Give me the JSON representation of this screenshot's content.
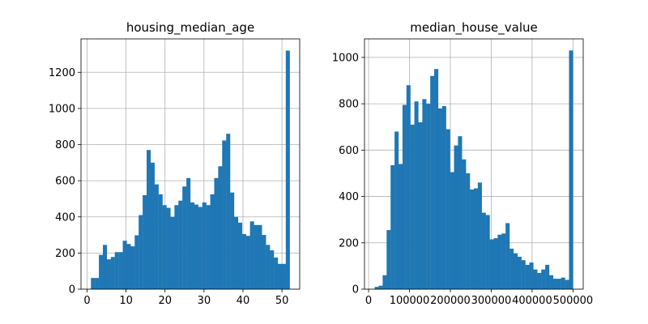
{
  "chart_data": [
    {
      "type": "bar",
      "title": "housing_median_age",
      "xlabel": "",
      "ylabel": "",
      "xlim": [
        -1.55,
        54.55
      ],
      "ylim": [
        0,
        1385
      ],
      "xticks": [
        0,
        10,
        20,
        30,
        40,
        50
      ],
      "yticks": [
        0,
        200,
        400,
        600,
        800,
        1000,
        1200
      ],
      "bin_range": [
        1,
        52
      ],
      "values": [
        62,
        62,
        190,
        245,
        165,
        178,
        205,
        205,
        268,
        250,
        237,
        298,
        410,
        520,
        770,
        700,
        580,
        525,
        465,
        450,
        400,
        465,
        490,
        568,
        615,
        480,
        468,
        455,
        480,
        465,
        525,
        615,
        680,
        823,
        860,
        535,
        400,
        368,
        305,
        295,
        375,
        355,
        355,
        300,
        245,
        215,
        175,
        140,
        140,
        1320
      ],
      "color": "#1f77b4",
      "grid": true
    },
    {
      "type": "bar",
      "title": "median_house_value",
      "xlabel": "",
      "ylabel": "",
      "xlim": [
        -10000,
        525000
      ],
      "ylim": [
        0,
        1080
      ],
      "xticks": [
        0,
        100000,
        200000,
        300000,
        400000,
        500000
      ],
      "yticks": [
        0,
        200,
        400,
        600,
        800,
        1000
      ],
      "bin_range": [
        15000,
        500001
      ],
      "values": [
        10,
        15,
        60,
        255,
        535,
        680,
        540,
        795,
        880,
        710,
        810,
        720,
        820,
        800,
        920,
        950,
        780,
        790,
        690,
        505,
        620,
        660,
        560,
        500,
        430,
        435,
        460,
        330,
        320,
        215,
        220,
        235,
        240,
        285,
        175,
        155,
        140,
        125,
        105,
        115,
        85,
        70,
        85,
        105,
        60,
        45,
        45,
        50,
        40,
        1030
      ],
      "color": "#1f77b4",
      "grid": true
    }
  ]
}
